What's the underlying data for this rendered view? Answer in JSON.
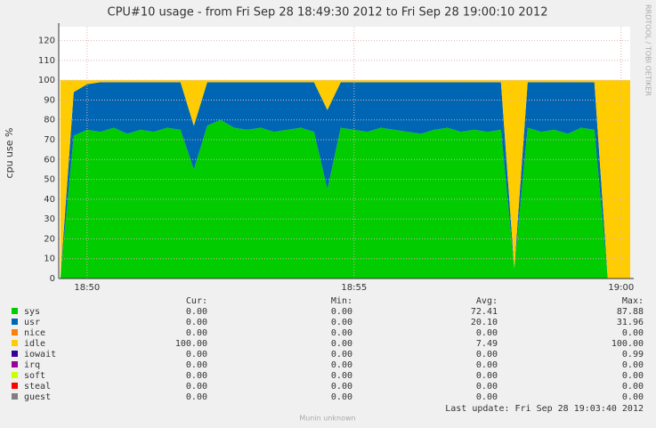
{
  "chart_data": {
    "type": "stacked-area",
    "title": "CPU#10 usage - from Fri Sep 28 18:49:30 2012 to Fri Sep 28 19:00:10 2012",
    "ylabel": "cpu use %",
    "watermark": "RRDTOOL / TOBI OETIKER",
    "last_update": "Last update:  Fri Sep 28 19:03:40 2012",
    "footer": "Munin unknown",
    "x": [
      49.5,
      49.75,
      50,
      50.25,
      50.5,
      50.75,
      51,
      51.25,
      51.5,
      51.75,
      52,
      52.25,
      52.5,
      52.75,
      53,
      53.25,
      53.5,
      53.75,
      54,
      54.25,
      54.5,
      54.75,
      55,
      55.25,
      55.5,
      55.75,
      56,
      56.25,
      56.5,
      56.75,
      57,
      57.25,
      57.5,
      57.75,
      58,
      58.25,
      58.5,
      58.75,
      59,
      59.25,
      59.5,
      59.75,
      60,
      60.17
    ],
    "xlim": [
      49.47,
      60.17
    ],
    "xticks": [
      {
        "value": 50,
        "label": "18:50"
      },
      {
        "value": 55,
        "label": "18:55"
      },
      {
        "value": 60,
        "label": "19:00"
      }
    ],
    "ylim": [
      0,
      127
    ],
    "yticks": [
      0,
      10,
      20,
      30,
      40,
      50,
      60,
      70,
      80,
      90,
      100,
      110,
      120
    ],
    "grid": true,
    "series": [
      {
        "name": "sys",
        "color": "#00cc00",
        "values": [
          0,
          72,
          75,
          74,
          76,
          73,
          75,
          74,
          76,
          75,
          55,
          77,
          80,
          76,
          75,
          76,
          74,
          75,
          76,
          74,
          45,
          76,
          75,
          74,
          76,
          75,
          74,
          73,
          75,
          76,
          74,
          75,
          74,
          75,
          5,
          76,
          74,
          75,
          73,
          76,
          75,
          0,
          0,
          0
        ]
      },
      {
        "name": "usr",
        "color": "#0066b3",
        "values": [
          0,
          22,
          23,
          25,
          23,
          26,
          24,
          25,
          23,
          24,
          22,
          22,
          19,
          23,
          24,
          23,
          25,
          24,
          23,
          25,
          40,
          23,
          24,
          25,
          23,
          24,
          25,
          26,
          24,
          23,
          25,
          24,
          25,
          24,
          0,
          23,
          25,
          24,
          26,
          23,
          24,
          0,
          0,
          0
        ]
      },
      {
        "name": "nice",
        "color": "#ff8000",
        "values": [
          0,
          0,
          0,
          0,
          0,
          0,
          0,
          0,
          0,
          0,
          0,
          0,
          0,
          0,
          0,
          0,
          0,
          0,
          0,
          0,
          0,
          0,
          0,
          0,
          0,
          0,
          0,
          0,
          0,
          0,
          0,
          0,
          0,
          0,
          0,
          0,
          0,
          0,
          0,
          0,
          0,
          0,
          0,
          0
        ]
      },
      {
        "name": "idle",
        "color": "#ffcc00",
        "values": [
          100,
          6,
          2,
          1,
          1,
          1,
          1,
          1,
          1,
          1,
          23,
          1,
          1,
          1,
          1,
          1,
          1,
          1,
          1,
          1,
          15,
          1,
          1,
          1,
          1,
          1,
          1,
          1,
          1,
          1,
          1,
          1,
          1,
          1,
          95,
          1,
          1,
          1,
          1,
          1,
          1,
          100,
          100,
          100
        ]
      },
      {
        "name": "iowait",
        "color": "#330099",
        "values": [
          0,
          0,
          0,
          0,
          0,
          0,
          0,
          0,
          0,
          0,
          0,
          0,
          0,
          0,
          0,
          0,
          0,
          0,
          0,
          0,
          0,
          0,
          0,
          0,
          0,
          0,
          0,
          0,
          0,
          0,
          0,
          0,
          0,
          0,
          0,
          0,
          0,
          0,
          0,
          0,
          0,
          0,
          0,
          0
        ]
      },
      {
        "name": "irq",
        "color": "#990099",
        "values": [
          0,
          0,
          0,
          0,
          0,
          0,
          0,
          0,
          0,
          0,
          0,
          0,
          0,
          0,
          0,
          0,
          0,
          0,
          0,
          0,
          0,
          0,
          0,
          0,
          0,
          0,
          0,
          0,
          0,
          0,
          0,
          0,
          0,
          0,
          0,
          0,
          0,
          0,
          0,
          0,
          0,
          0,
          0,
          0
        ]
      },
      {
        "name": "soft",
        "color": "#ccff00",
        "values": [
          0,
          0,
          0,
          0,
          0,
          0,
          0,
          0,
          0,
          0,
          0,
          0,
          0,
          0,
          0,
          0,
          0,
          0,
          0,
          0,
          0,
          0,
          0,
          0,
          0,
          0,
          0,
          0,
          0,
          0,
          0,
          0,
          0,
          0,
          0,
          0,
          0,
          0,
          0,
          0,
          0,
          0,
          0,
          0
        ]
      },
      {
        "name": "steal",
        "color": "#ff0000",
        "values": [
          0,
          0,
          0,
          0,
          0,
          0,
          0,
          0,
          0,
          0,
          0,
          0,
          0,
          0,
          0,
          0,
          0,
          0,
          0,
          0,
          0,
          0,
          0,
          0,
          0,
          0,
          0,
          0,
          0,
          0,
          0,
          0,
          0,
          0,
          0,
          0,
          0,
          0,
          0,
          0,
          0,
          0,
          0,
          0
        ]
      },
      {
        "name": "guest",
        "color": "#808080",
        "values": [
          0,
          0,
          0,
          0,
          0,
          0,
          0,
          0,
          0,
          0,
          0,
          0,
          0,
          0,
          0,
          0,
          0,
          0,
          0,
          0,
          0,
          0,
          0,
          0,
          0,
          0,
          0,
          0,
          0,
          0,
          0,
          0,
          0,
          0,
          0,
          0,
          0,
          0,
          0,
          0,
          0,
          0,
          0,
          0
        ]
      }
    ],
    "legend_table": {
      "headers": [
        "Cur:",
        "Min:",
        "Avg:",
        "Max:"
      ],
      "rows": [
        [
          "0.00",
          "0.00",
          "72.41",
          "87.88"
        ],
        [
          "0.00",
          "0.00",
          "20.10",
          "31.96"
        ],
        [
          "0.00",
          "0.00",
          "0.00",
          "0.00"
        ],
        [
          "100.00",
          "0.00",
          "7.49",
          "100.00"
        ],
        [
          "0.00",
          "0.00",
          "0.00",
          "0.99"
        ],
        [
          "0.00",
          "0.00",
          "0.00",
          "0.00"
        ],
        [
          "0.00",
          "0.00",
          "0.00",
          "0.00"
        ],
        [
          "0.00",
          "0.00",
          "0.00",
          "0.00"
        ],
        [
          "0.00",
          "0.00",
          "0.00",
          "0.00"
        ]
      ]
    }
  }
}
